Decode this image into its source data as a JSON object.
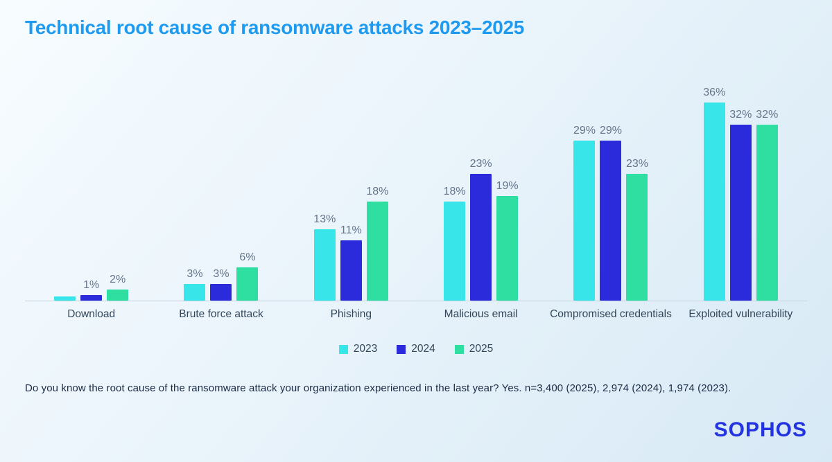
{
  "title": "Technical root cause of ransomware attacks 2023–2025",
  "footnote": "Do you know the root cause of the ransomware attack your organization experienced in the last year? Yes.  n=3,400 (2025), 2,974 (2024), 1,974 (2023).",
  "logo": "SOPHOS",
  "colors": {
    "title": "#1e9bf0",
    "logo": "#2333e0",
    "axis_line": "#c3d2de",
    "value_label": "#64748b",
    "category_label": "#33475a",
    "series_2023": "#38e5e9",
    "series_2024": "#2b2bdc",
    "series_2025": "#2fdfa2"
  },
  "chart_data": {
    "type": "bar",
    "title": "Technical root cause of ransomware attacks 2023–2025",
    "categories": [
      "Download",
      "Brute force attack",
      "Phishing",
      "Malicious email",
      "Compromised credentials",
      "Exploited vulnerability"
    ],
    "series": [
      {
        "name": "2023",
        "color": "#38e5e9",
        "values": [
          0.7,
          3,
          13,
          18,
          29,
          36
        ],
        "labels": [
          "",
          "3%",
          "13%",
          "18%",
          "29%",
          "36%"
        ]
      },
      {
        "name": "2024",
        "color": "#2b2bdc",
        "values": [
          1,
          3,
          11,
          23,
          29,
          32
        ],
        "labels": [
          "1%",
          "3%",
          "11%",
          "23%",
          "29%",
          "32%"
        ]
      },
      {
        "name": "2025",
        "color": "#2fdfa2",
        "values": [
          2,
          6,
          18,
          19,
          23,
          32
        ],
        "labels": [
          "2%",
          "6%",
          "18%",
          "19%",
          "23%",
          "32%"
        ]
      }
    ],
    "unit": "%",
    "ylim": [
      0,
      38
    ],
    "grid": false,
    "legend_position": "bottom",
    "legend_entries": [
      "2023",
      "2024",
      "2025"
    ]
  }
}
